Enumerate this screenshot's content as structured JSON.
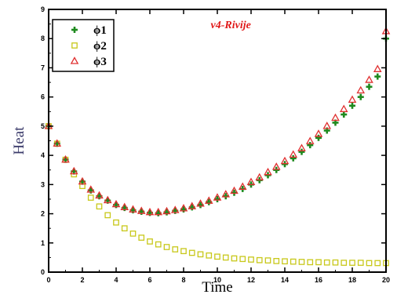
{
  "chart_data": {
    "type": "scatter",
    "xlabel": "Time",
    "ylabel": "Heat",
    "annotation": "v4-Rivije",
    "xlim": [
      0,
      20
    ],
    "ylim": [
      0,
      9
    ],
    "x_ticks": [
      "0",
      "2",
      "4",
      "6",
      "8",
      "10",
      "12",
      "14",
      "16",
      "18",
      "20"
    ],
    "y_ticks": [
      "0",
      "1",
      "2",
      "3",
      "4",
      "5",
      "6",
      "7",
      "8",
      "9"
    ],
    "legend_position": "top-left",
    "series": [
      {
        "name": "ϕ1",
        "marker": "plus",
        "color": "#1f8a1f",
        "x": [
          0,
          0.5,
          1,
          1.5,
          2,
          2.5,
          3,
          3.5,
          4,
          4.5,
          5,
          5.5,
          6,
          6.5,
          7,
          7.5,
          8,
          8.5,
          9,
          9.5,
          10,
          10.5,
          11,
          11.5,
          12,
          12.5,
          13,
          13.5,
          14,
          14.5,
          15,
          15.5,
          16,
          16.5,
          17,
          17.5,
          18,
          18.5,
          19,
          19.5,
          20
        ],
        "y": [
          5.0,
          4.4,
          3.85,
          3.45,
          3.1,
          2.8,
          2.6,
          2.45,
          2.3,
          2.2,
          2.12,
          2.07,
          2.03,
          2.02,
          2.05,
          2.1,
          2.15,
          2.22,
          2.3,
          2.4,
          2.5,
          2.6,
          2.72,
          2.85,
          3.0,
          3.15,
          3.32,
          3.5,
          3.7,
          3.9,
          4.12,
          4.35,
          4.6,
          4.85,
          5.12,
          5.4,
          5.7,
          6.0,
          6.35,
          6.7,
          8.0
        ]
      },
      {
        "name": "ϕ2",
        "marker": "square",
        "color": "#c8c81a",
        "x": [
          0,
          0.5,
          1,
          1.5,
          2,
          2.5,
          3,
          3.5,
          4,
          4.5,
          5,
          5.5,
          6,
          6.5,
          7,
          7.5,
          8,
          8.5,
          9,
          9.5,
          10,
          10.5,
          11,
          11.5,
          12,
          12.5,
          13,
          13.5,
          14,
          14.5,
          15,
          15.5,
          16,
          16.5,
          17,
          17.5,
          18,
          18.5,
          19,
          19.5,
          20
        ],
        "y": [
          5.0,
          4.4,
          3.85,
          3.35,
          2.95,
          2.55,
          2.25,
          1.95,
          1.7,
          1.5,
          1.32,
          1.18,
          1.05,
          0.95,
          0.86,
          0.78,
          0.72,
          0.66,
          0.61,
          0.57,
          0.53,
          0.5,
          0.47,
          0.45,
          0.43,
          0.41,
          0.4,
          0.38,
          0.37,
          0.36,
          0.35,
          0.34,
          0.34,
          0.33,
          0.33,
          0.32,
          0.32,
          0.32,
          0.31,
          0.31,
          0.31
        ]
      },
      {
        "name": "ϕ3",
        "marker": "triangle",
        "color": "#e03030",
        "x": [
          0,
          0.5,
          1,
          1.5,
          2,
          2.5,
          3,
          3.5,
          4,
          4.5,
          5,
          5.5,
          6,
          6.5,
          7,
          7.5,
          8,
          8.5,
          9,
          9.5,
          10,
          10.5,
          11,
          11.5,
          12,
          12.5,
          13,
          13.5,
          14,
          14.5,
          15,
          15.5,
          16,
          16.5,
          17,
          17.5,
          18,
          18.5,
          19,
          19.5,
          20
        ],
        "y": [
          5.0,
          4.4,
          3.85,
          3.45,
          3.1,
          2.82,
          2.62,
          2.46,
          2.32,
          2.22,
          2.14,
          2.09,
          2.05,
          2.05,
          2.08,
          2.12,
          2.18,
          2.25,
          2.34,
          2.44,
          2.55,
          2.66,
          2.78,
          2.92,
          3.08,
          3.24,
          3.42,
          3.6,
          3.8,
          4.02,
          4.24,
          4.48,
          4.73,
          5.0,
          5.28,
          5.58,
          5.9,
          6.22,
          6.58,
          6.95,
          8.25
        ]
      }
    ]
  }
}
